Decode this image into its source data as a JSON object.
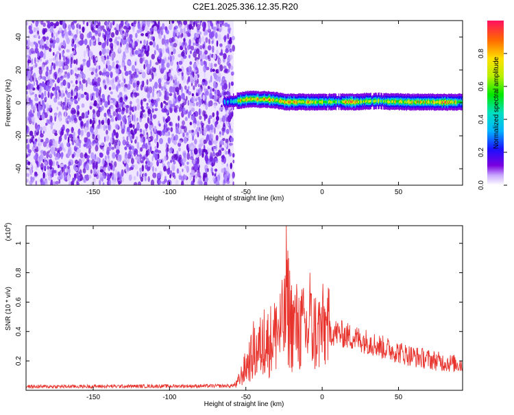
{
  "title": "C2E1.2025.336.12.35.R20",
  "spectrogram": {
    "type": "heatmap",
    "xlabel": "Height of straight line (km)",
    "ylabel": "Frequency (Hz)",
    "xlim": [
      -194,
      92
    ],
    "ylim": [
      -50,
      50
    ],
    "xticks": [
      -150,
      -100,
      -50,
      0,
      50
    ],
    "yticks": [
      -40,
      -20,
      0,
      20,
      40
    ],
    "colorbar": {
      "label": "Normalized spectral amplitude",
      "range": [
        0,
        1
      ],
      "ticks": [
        "0.0",
        "0.2",
        "0.4",
        "0.6",
        "0.8"
      ]
    },
    "noise_region_x": [
      -194,
      -58
    ],
    "signal_band": [
      {
        "x": -62,
        "freq": 0.5,
        "amp": 0.3
      },
      {
        "x": -58,
        "freq": 1.0,
        "amp": 0.45
      },
      {
        "x": -54,
        "freq": 1.5,
        "amp": 0.8
      },
      {
        "x": -50,
        "freq": 2.0,
        "amp": 0.9
      },
      {
        "x": -45,
        "freq": 2.5,
        "amp": 0.85
      },
      {
        "x": -40,
        "freq": 2.0,
        "amp": 0.8
      },
      {
        "x": -35,
        "freq": 2.0,
        "amp": 0.9
      },
      {
        "x": -30,
        "freq": 1.5,
        "amp": 0.7
      },
      {
        "x": -25,
        "freq": 0.5,
        "amp": 0.9
      },
      {
        "x": -18,
        "freq": 0.5,
        "amp": 0.85
      },
      {
        "x": -10,
        "freq": 0.5,
        "amp": 0.8
      },
      {
        "x": 0,
        "freq": 0.5,
        "amp": 0.7
      },
      {
        "x": 10,
        "freq": 0.8,
        "amp": 0.6
      },
      {
        "x": 18,
        "freq": 0.5,
        "amp": 0.9
      },
      {
        "x": 25,
        "freq": 0.8,
        "amp": 0.7
      },
      {
        "x": 35,
        "freq": 1.2,
        "amp": 0.65
      },
      {
        "x": 45,
        "freq": 0.8,
        "amp": 0.75
      },
      {
        "x": 55,
        "freq": 0.5,
        "amp": 0.8
      },
      {
        "x": 65,
        "freq": 0.5,
        "amp": 0.75
      },
      {
        "x": 80,
        "freq": 0.5,
        "amp": 0.9
      },
      {
        "x": 90,
        "freq": 0.5,
        "amp": 0.7
      }
    ]
  },
  "snr": {
    "type": "line",
    "xlabel": "Height of straight line (km)",
    "ylabel": "SNR (10 * v/v)",
    "scale_label": "(x10",
    "scale_exp": "4",
    "scale_close": ")",
    "xlim": [
      -194,
      92
    ],
    "ylim": [
      0,
      1.12
    ],
    "xticks": [
      -150,
      -100,
      -50,
      0,
      50
    ],
    "yticks": [
      "0.2",
      "0.4",
      "0.6",
      "0.8",
      "1"
    ],
    "line_color": "#e8332d",
    "envelope_x": [
      -194,
      -60,
      -56,
      -52,
      -48,
      -44,
      -40,
      -35,
      -30,
      -25,
      -22,
      -20,
      -15,
      -10,
      -7,
      -5,
      0,
      5,
      10,
      20,
      30,
      40,
      50,
      60,
      70,
      80,
      92
    ],
    "envelope_y": [
      0.025,
      0.03,
      0.04,
      0.12,
      0.2,
      0.25,
      0.3,
      0.33,
      0.38,
      0.45,
      0.55,
      0.45,
      0.42,
      0.4,
      0.42,
      0.4,
      0.42,
      0.4,
      0.39,
      0.36,
      0.33,
      0.29,
      0.26,
      0.23,
      0.21,
      0.19,
      0.175
    ],
    "peaks": [
      {
        "x": -23.5,
        "y": 1.12
      },
      {
        "x": -22.5,
        "y": 0.95
      },
      {
        "x": -25,
        "y": 0.6
      },
      {
        "x": -8,
        "y": 0.8
      },
      {
        "x": -45,
        "y": 0.47
      },
      {
        "x": -38,
        "y": 0.55
      },
      {
        "x": -30,
        "y": 0.57
      },
      {
        "x": -12,
        "y": 0.52
      },
      {
        "x": -16,
        "y": 0.53
      },
      {
        "x": -3,
        "y": 0.46
      },
      {
        "x": 3,
        "y": 0.44
      },
      {
        "x": 32,
        "y": 0.36
      }
    ]
  }
}
